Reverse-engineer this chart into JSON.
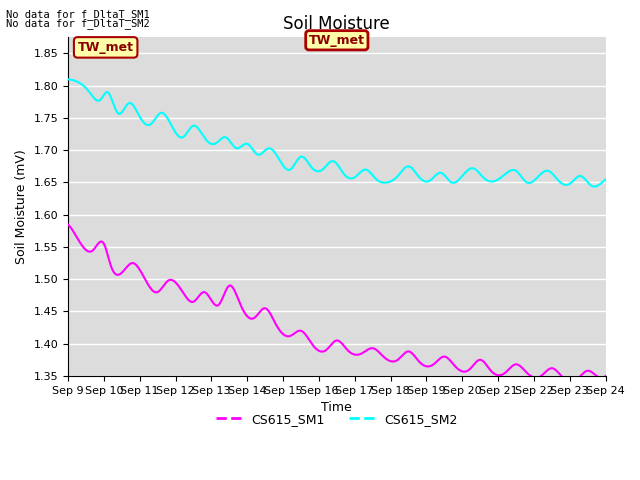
{
  "title": "Soil Moisture",
  "ylabel": "Soil Moisture (mV)",
  "xlabel": "Time",
  "ylim": [
    1.35,
    1.875
  ],
  "yticks": [
    1.35,
    1.4,
    1.45,
    1.5,
    1.55,
    1.6,
    1.65,
    1.7,
    1.75,
    1.8,
    1.85
  ],
  "xtick_labels": [
    "Sep 9",
    "Sep 10",
    "Sep 11",
    "Sep 12",
    "Sep 13",
    "Sep 14",
    "Sep 15",
    "Sep 16",
    "Sep 17",
    "Sep 18",
    "Sep 19",
    "Sep 20",
    "Sep 21",
    "Sep 22",
    "Sep 23",
    "Sep 24"
  ],
  "nodata_text1": "No data for f_DltaT_SM1",
  "nodata_text2": "No data for f_DltaT_SM2",
  "twmet_label": "TW_met",
  "legend_labels": [
    "CS615_SM1",
    "CS615_SM2"
  ],
  "color_sm1": "#FF00FF",
  "color_sm2": "#00FFFF",
  "bg_color": "#DCDCDC",
  "fig_bg": "#FFFFFF",
  "twmet_bg": "#FFFFAA",
  "twmet_border": "#AA0000",
  "title_fontsize": 12,
  "axis_fontsize": 9,
  "tick_fontsize": 8
}
